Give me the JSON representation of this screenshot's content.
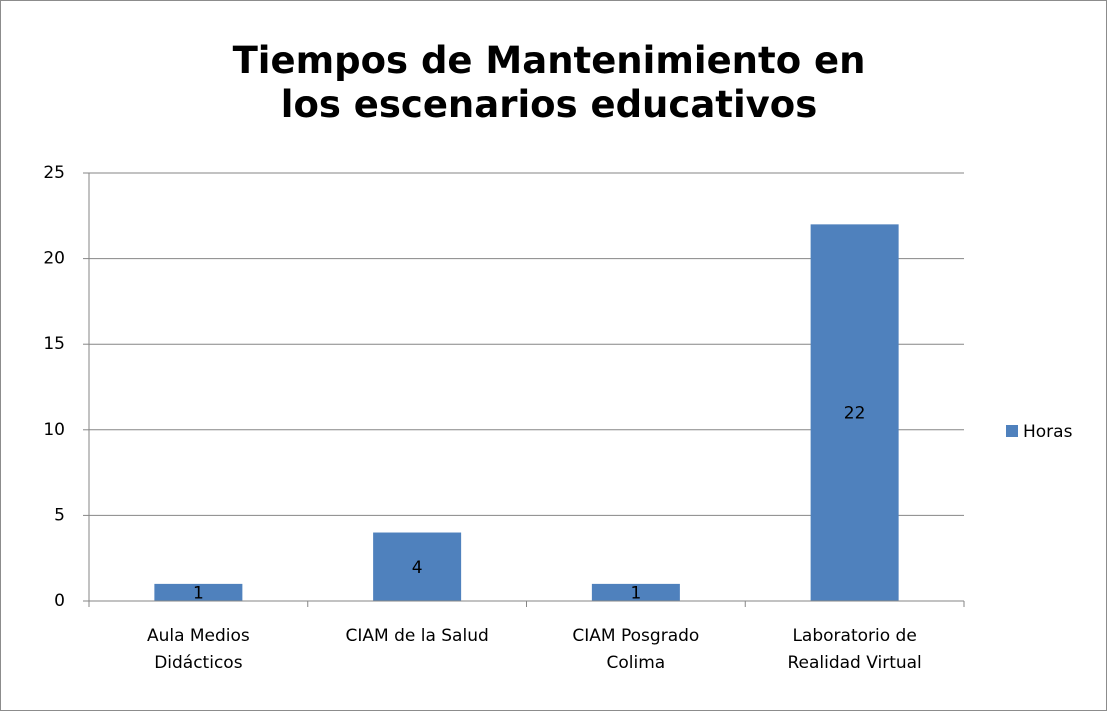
{
  "chart_data": {
    "type": "bar",
    "title": "Tiempos de Mantenimiento en los escenarios educativos",
    "categories": [
      "Aula Medios Didácticos",
      "CIAM de la Salud",
      "CIAM Posgrado Colima",
      "Laboratorio de Realidad Virtual"
    ],
    "series": [
      {
        "name": "Horas",
        "color": "#4f81bd",
        "values": [
          1,
          4,
          1,
          22
        ]
      }
    ],
    "ylim": [
      0,
      25
    ],
    "yticks": [
      0,
      5,
      10,
      15,
      20,
      25
    ],
    "grid": true,
    "data_labels": true,
    "legend": "right"
  }
}
